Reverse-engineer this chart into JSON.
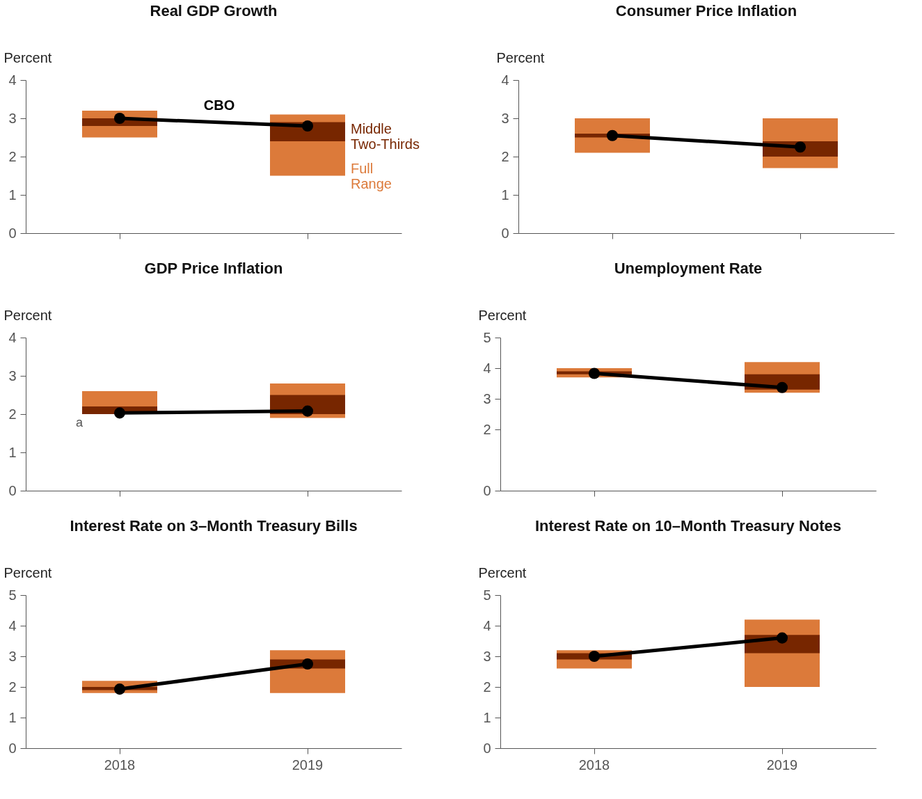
{
  "chart_data": [
    {
      "type": "bar",
      "title": "Real GDP Growth",
      "ylabel": "Percent",
      "categories": [
        "2018",
        "2019"
      ],
      "ylim": [
        0,
        4
      ],
      "yticks": [
        0,
        1,
        2,
        3,
        4
      ],
      "tick_labels": "y",
      "grid": false,
      "marker": "circle",
      "series": [
        {
          "name": "Full Range",
          "color": "#dc7a3a",
          "base": [
            2.5,
            1.5
          ],
          "values": [
            0.7,
            1.6
          ]
        },
        {
          "name": "Middle Two-Thirds",
          "color": "#772600",
          "base": [
            2.8,
            2.4
          ],
          "values": [
            0.2,
            0.5
          ]
        },
        {
          "name": "CBO",
          "type": "line",
          "color": "#000000",
          "values": [
            3.0,
            2.8
          ]
        }
      ]
    },
    {
      "type": "bar",
      "title": "Consumer Price Inflation",
      "ylabel": "Percent",
      "categories": [
        "2018",
        "2019"
      ],
      "ylim": [
        0,
        4
      ],
      "yticks": [
        0,
        1,
        2,
        3,
        4
      ],
      "tick_labels": "y",
      "grid": false,
      "marker": "circle",
      "series": [
        {
          "color": "#dc7a3a",
          "base": [
            2.1,
            1.7
          ],
          "values": [
            0.9,
            1.3
          ]
        },
        {
          "color": "#772600",
          "base": [
            2.5,
            2.0
          ],
          "values": [
            0.1,
            0.4
          ]
        },
        {
          "type": "line",
          "color": "#000000",
          "values": [
            2.55,
            2.25
          ]
        }
      ]
    },
    {
      "type": "bar",
      "title": "GDP Price Inflation",
      "ylabel": "Percent",
      "categories": [
        "2018",
        "2019"
      ],
      "ylim": [
        0,
        4
      ],
      "yticks": [
        0,
        1,
        2,
        3,
        4
      ],
      "tick_labels": "y",
      "grid": false,
      "marker": "circle",
      "annotations": [
        {
          "text": "a",
          "x": "2018",
          "y": 2.0
        }
      ],
      "series": [
        {
          "color": "#dc7a3a",
          "base": [
            2.0,
            1.9
          ],
          "values": [
            0.6,
            0.9
          ]
        },
        {
          "color": "#772600",
          "base": [
            2.0,
            2.0
          ],
          "values": [
            0.2,
            0.5
          ]
        },
        {
          "type": "line",
          "color": "#000000",
          "values": [
            2.03,
            2.08
          ]
        }
      ]
    },
    {
      "type": "bar",
      "title": "Unemployment Rate",
      "ylabel": "Percent",
      "categories": [
        "2018",
        "2019"
      ],
      "ylim": [
        0,
        5
      ],
      "yticks": [
        0,
        2,
        3,
        4,
        5
      ],
      "tick_labels": "y",
      "grid": false,
      "marker": "circle",
      "series": [
        {
          "color": "#dc7a3a",
          "base": [
            3.7,
            3.2
          ],
          "values": [
            0.3,
            1.0
          ]
        },
        {
          "color": "#772600",
          "base": [
            3.8,
            3.3
          ],
          "values": [
            0.1,
            0.5
          ]
        },
        {
          "type": "line",
          "color": "#000000",
          "values": [
            3.83,
            3.37
          ]
        }
      ]
    },
    {
      "type": "bar",
      "title": "Interest Rate on 3–Month Treasury Bills",
      "ylabel": "Percent",
      "categories": [
        "2018",
        "2019"
      ],
      "ylim": [
        0,
        5
      ],
      "yticks": [
        0,
        1,
        2,
        3,
        4,
        5
      ],
      "grid": false,
      "marker": "circle",
      "series": [
        {
          "color": "#dc7a3a",
          "base": [
            1.8,
            1.8
          ],
          "values": [
            0.4,
            1.4
          ]
        },
        {
          "color": "#772600",
          "base": [
            1.9,
            2.6
          ],
          "values": [
            0.1,
            0.3
          ]
        },
        {
          "type": "line",
          "color": "#000000",
          "values": [
            1.93,
            2.75
          ]
        }
      ]
    },
    {
      "type": "bar",
      "title": "Interest Rate on 10–Month Treasury Notes",
      "ylabel": "Percent",
      "categories": [
        "2018",
        "2019"
      ],
      "ylim": [
        0,
        5
      ],
      "yticks": [
        0,
        1,
        2,
        3,
        4,
        5
      ],
      "grid": false,
      "marker": "circle",
      "series": [
        {
          "color": "#dc7a3a",
          "base": [
            2.6,
            2.0
          ],
          "values": [
            0.6,
            2.2
          ]
        },
        {
          "color": "#772600",
          "base": [
            2.9,
            3.1
          ],
          "values": [
            0.2,
            0.6
          ]
        },
        {
          "type": "line",
          "color": "#000000",
          "values": [
            3.0,
            3.6
          ]
        }
      ]
    }
  ]
}
